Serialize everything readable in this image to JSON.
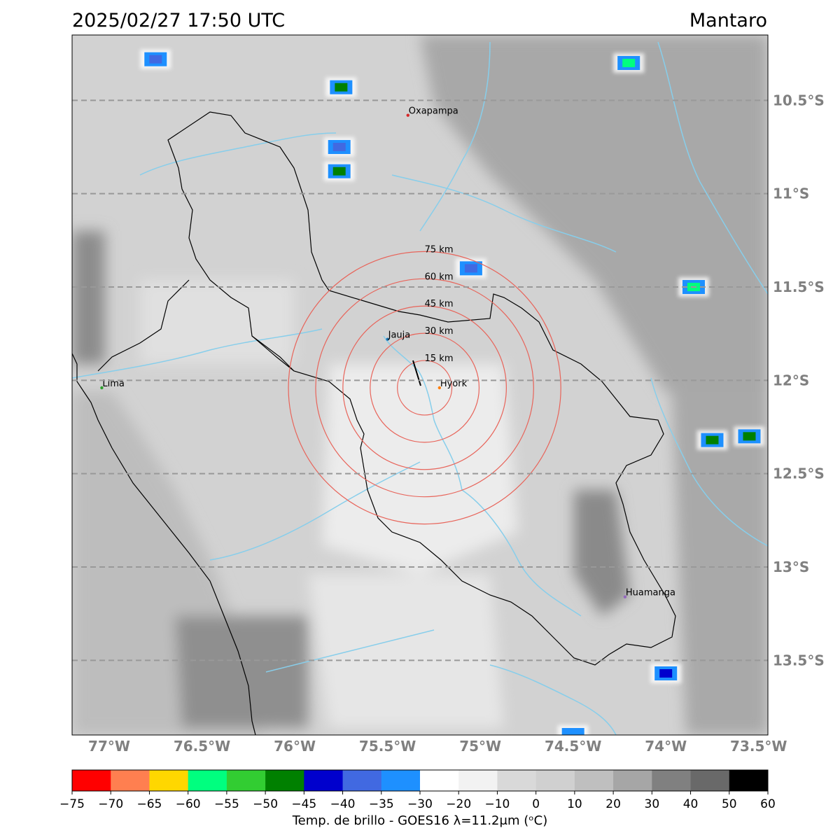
{
  "header": {
    "datetime": "2025/02/27 17:50 UTC",
    "region": "Mantaro"
  },
  "map": {
    "lon_range": [
      -77.2,
      -73.45
    ],
    "lat_range": [
      -13.9,
      -10.15
    ],
    "lat_ticks": [
      {
        "value": -10.5,
        "label": "10.5°S"
      },
      {
        "value": -11.0,
        "label": "11°S"
      },
      {
        "value": -11.5,
        "label": "11.5°S"
      },
      {
        "value": -12.0,
        "label": "12°S"
      },
      {
        "value": -12.5,
        "label": "12.5°S"
      },
      {
        "value": -13.0,
        "label": "13°S"
      },
      {
        "value": -13.5,
        "label": "13.5°S"
      }
    ],
    "lon_ticks": [
      {
        "value": -77.0,
        "label": "77°W"
      },
      {
        "value": -76.5,
        "label": "76.5°W"
      },
      {
        "value": -76.0,
        "label": "76°W"
      },
      {
        "value": -75.5,
        "label": "75.5°W"
      },
      {
        "value": -75.0,
        "label": "75°W"
      },
      {
        "value": -74.5,
        "label": "74.5°W"
      },
      {
        "value": -74.0,
        "label": "74°W"
      },
      {
        "value": -73.5,
        "label": "73.5°W"
      }
    ],
    "cities": [
      {
        "name": "Oxapampa",
        "lon": -75.39,
        "lat": -10.58,
        "color": "#d62728"
      },
      {
        "name": "Jauja",
        "lon": -75.5,
        "lat": -11.78,
        "color": "#1f77b4"
      },
      {
        "name": "Hyork",
        "lon": -75.22,
        "lat": -12.04,
        "color": "#ff7f0e"
      },
      {
        "name": "Lima",
        "lon": -77.04,
        "lat": -12.04,
        "color": "#2ca02c"
      },
      {
        "name": "Huamanga",
        "lon": -74.22,
        "lat": -13.16,
        "color": "#9467bd"
      }
    ],
    "range_rings": {
      "center": {
        "lon": -75.3,
        "lat": -12.04
      },
      "radii_km": [
        15,
        30,
        45,
        60,
        75
      ],
      "labels": [
        "15 km",
        "30 km",
        "45 km",
        "60 km",
        "75 km"
      ],
      "color": "#e8645a"
    },
    "storm_cells": [
      {
        "lon": -76.75,
        "lat": -10.28,
        "min_temp": -40
      },
      {
        "lon": -75.75,
        "lat": -10.43,
        "min_temp": -50
      },
      {
        "lon": -75.76,
        "lat": -10.75,
        "min_temp": -40
      },
      {
        "lon": -75.76,
        "lat": -10.88,
        "min_temp": -50
      },
      {
        "lon": -75.05,
        "lat": -11.4,
        "min_temp": -40
      },
      {
        "lon": -74.2,
        "lat": -10.3,
        "min_temp": -60
      },
      {
        "lon": -73.85,
        "lat": -11.5,
        "min_temp": -60
      },
      {
        "lon": -73.55,
        "lat": -12.3,
        "min_temp": -50
      },
      {
        "lon": -73.75,
        "lat": -12.32,
        "min_temp": -50
      },
      {
        "lon": -74.0,
        "lat": -13.57,
        "min_temp": -45
      },
      {
        "lon": -74.5,
        "lat": -13.9,
        "min_temp": -35
      }
    ]
  },
  "colorbar": {
    "label": "Temp. de brillo - GOES16 λ=11.2μm (ᵒC)",
    "ticks": [
      "−75",
      "−70",
      "−65",
      "−60",
      "−55",
      "−50",
      "−45",
      "−40",
      "−35",
      "−30",
      "−20",
      "−10",
      "0",
      "10",
      "20",
      "30",
      "40",
      "50",
      "60"
    ],
    "colors": [
      "#ff0000",
      "#ff7f50",
      "#ffd700",
      "#00ff7f",
      "#32cd32",
      "#008000",
      "#0000cd",
      "#4169e1",
      "#1e90ff",
      "#ffffff",
      "#f2f2f2",
      "#d9d9d9",
      "#d0d0d0",
      "#bfbfbf",
      "#a6a6a6",
      "#808080",
      "#696969",
      "#000000"
    ]
  },
  "colors": {
    "river": "#87ceeb",
    "grid": "#999999",
    "boundary": "#000000"
  }
}
